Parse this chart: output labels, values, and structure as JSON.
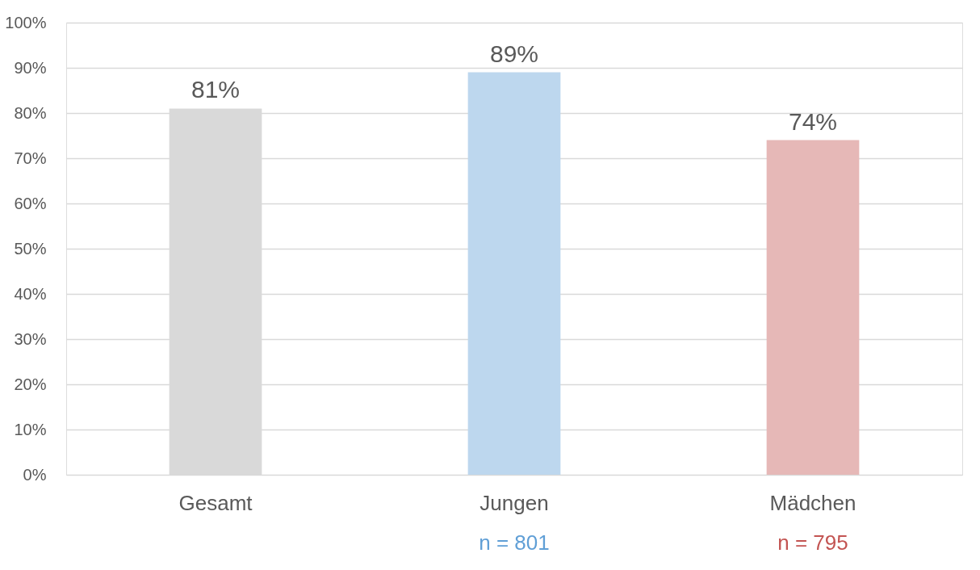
{
  "chart_data": {
    "type": "bar",
    "categories": [
      "Gesamt",
      "Jungen",
      "Mädchen"
    ],
    "values": [
      81,
      89,
      74
    ],
    "colors": [
      "#d9d9d9",
      "#bdd7ee",
      "#e6b8b7"
    ],
    "value_labels": [
      "81%",
      "89%",
      "74%"
    ],
    "ylim": [
      0,
      100
    ],
    "yticks": [
      {
        "value": 0,
        "label": "0%"
      },
      {
        "value": 10,
        "label": "10%"
      },
      {
        "value": 20,
        "label": "20%"
      },
      {
        "value": 30,
        "label": "30%"
      },
      {
        "value": 40,
        "label": "40%"
      },
      {
        "value": 50,
        "label": "50%"
      },
      {
        "value": 60,
        "label": "60%"
      },
      {
        "value": 70,
        "label": "70%"
      },
      {
        "value": 80,
        "label": "80%"
      },
      {
        "value": 90,
        "label": "90%"
      },
      {
        "value": 100,
        "label": "100%"
      }
    ],
    "grid": "y",
    "legend": false,
    "annotations": [
      "n = 801",
      "n = 795"
    ]
  }
}
